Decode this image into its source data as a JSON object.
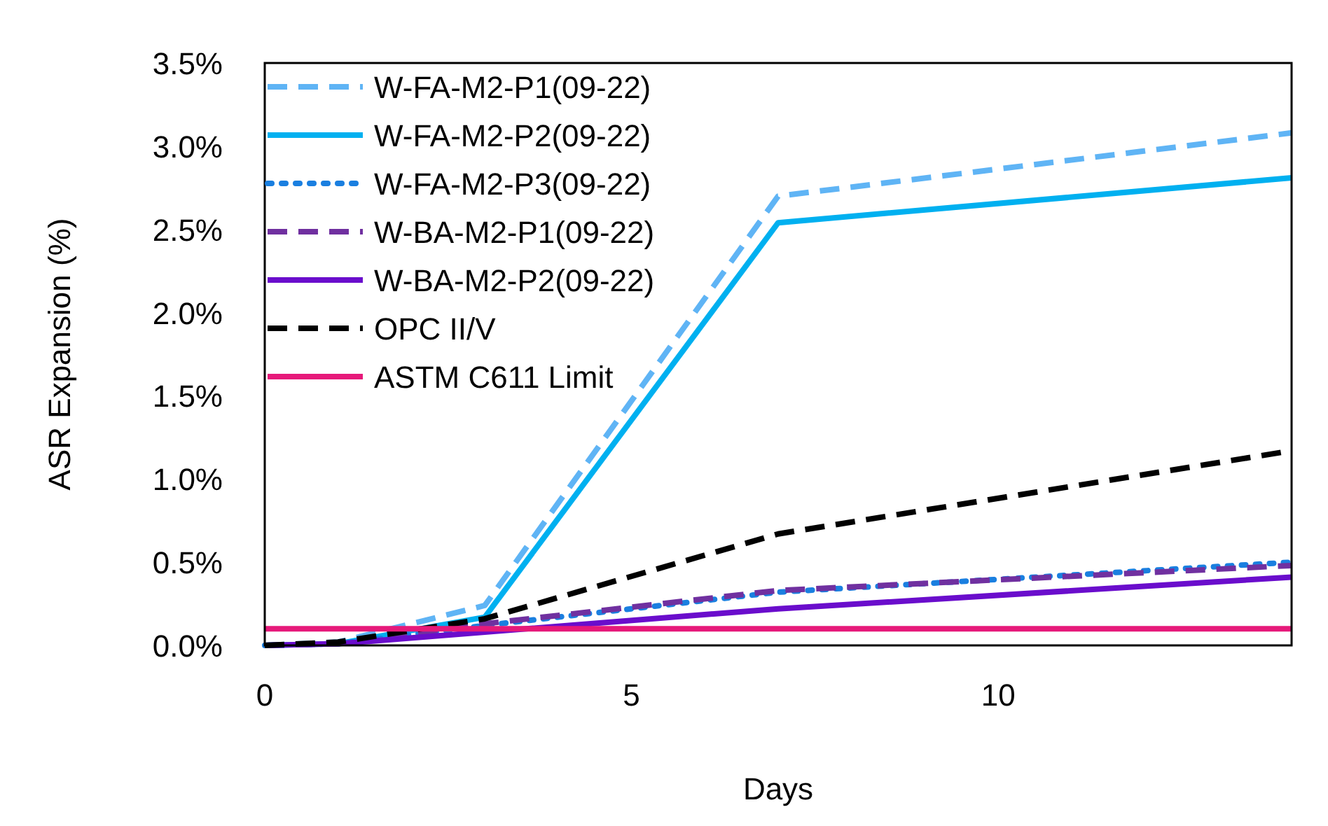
{
  "chart_data": {
    "type": "line",
    "xlabel": "Days",
    "ylabel": "ASR Expansion (%)",
    "x": [
      0,
      1,
      3,
      7,
      14
    ],
    "xlim": [
      0,
      14
    ],
    "xticks": [
      0,
      5,
      10
    ],
    "ylim": [
      0,
      3.5
    ],
    "yticks": [
      {
        "value": 0,
        "label": "0.0%"
      },
      {
        "value": 0.5,
        "label": "0.5%"
      },
      {
        "value": 1,
        "label": "1.0%"
      },
      {
        "value": 1.5,
        "label": "1.5%"
      },
      {
        "value": 2,
        "label": "2.0%"
      },
      {
        "value": 2.5,
        "label": "2.5%"
      },
      {
        "value": 3,
        "label": "3.0%"
      },
      {
        "value": 3.5,
        "label": "3.5%"
      }
    ],
    "grid": false,
    "legend": "top left",
    "marker": "none",
    "series": [
      {
        "name": "W-FA-M2-P1(09-22)",
        "color": "#5fb4f5",
        "line_style": "dashed",
        "values": [
          0,
          0.02,
          0.24,
          2.7,
          3.08
        ]
      },
      {
        "name": "W-FA-M2-P2(09-22)",
        "color": "#00b0f0",
        "line_style": "solid",
        "values": [
          0,
          0.01,
          0.17,
          2.54,
          2.81
        ]
      },
      {
        "name": "W-FA-M2-P3(09-22)",
        "color": "#1a7fe0",
        "line_style": "dotted",
        "values": [
          0,
          0.01,
          0.12,
          0.32,
          0.5
        ]
      },
      {
        "name": "W-BA-M2-P1(09-22)",
        "color": "#7030a0",
        "line_style": "dashed",
        "values": [
          0,
          0.01,
          0.13,
          0.33,
          0.48
        ]
      },
      {
        "name": "W-BA-M2-P2(09-22)",
        "color": "#6a0dcc",
        "line_style": "solid",
        "values": [
          0,
          0.01,
          0.08,
          0.22,
          0.41
        ]
      },
      {
        "name": "OPC II/V",
        "color": "#000000",
        "line_style": "dashed",
        "values": [
          0,
          0.02,
          0.16,
          0.67,
          1.17
        ]
      },
      {
        "name": "ASTM C611 Limit",
        "color": "#e6197a",
        "line_style": "solid",
        "values": [
          0.1,
          0.1,
          0.1,
          0.1,
          0.1
        ]
      }
    ]
  }
}
